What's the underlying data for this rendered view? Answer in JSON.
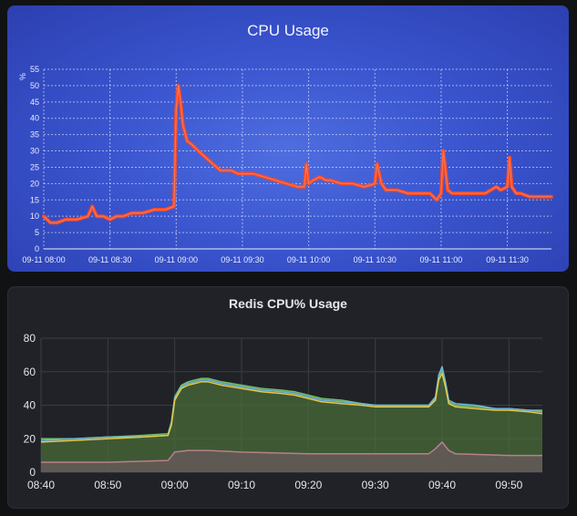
{
  "chart_data": [
    {
      "type": "line",
      "title": "CPU Usage",
      "ylabel": "%",
      "xlabel": "",
      "ylim": [
        0,
        55
      ],
      "y_ticks": [
        "0",
        "5",
        "10",
        "15",
        "20",
        "25",
        "30",
        "35",
        "40",
        "45",
        "50",
        "55"
      ],
      "x_ticks": [
        "09-11 08:00",
        "09-11 08:30",
        "09-11 09:00",
        "09-11 09:30",
        "09-11 10:00",
        "09-11 10:30",
        "09-11 11:00",
        "09-11 11:30"
      ],
      "x_tick_minutes": [
        0,
        30,
        60,
        90,
        120,
        150,
        180,
        210
      ],
      "xlim_minutes": [
        0,
        230
      ],
      "grid": true,
      "colors": {
        "line": "#ef4a2e",
        "grid": "#ffffff",
        "text": "#e8ecff"
      },
      "series": [
        {
          "x": [
            0,
            3,
            6,
            10,
            15,
            20,
            22,
            24,
            27,
            30,
            33,
            36,
            40,
            45,
            50,
            55,
            59,
            60,
            61,
            62,
            63,
            65,
            67,
            70,
            75,
            80,
            85,
            88,
            90,
            95,
            100,
            105,
            110,
            115,
            118,
            119,
            120,
            122,
            125,
            128,
            130,
            135,
            140,
            145,
            150,
            151,
            153,
            155,
            160,
            165,
            170,
            175,
            178,
            180,
            181,
            183,
            185,
            190,
            195,
            200,
            205,
            207,
            210,
            211,
            212,
            214,
            216,
            220,
            225,
            230
          ],
          "y": [
            10,
            8,
            8,
            9,
            9,
            10,
            13,
            10,
            10,
            9,
            10,
            10,
            11,
            11,
            12,
            12,
            13,
            43,
            50,
            45,
            38,
            33,
            32,
            30,
            27,
            24,
            24,
            23,
            23,
            23,
            22,
            21,
            20,
            19,
            19,
            26,
            20,
            21,
            22,
            21,
            21,
            20,
            20,
            19,
            20,
            26,
            20,
            18,
            18,
            17,
            17,
            17,
            15,
            17,
            30,
            18,
            17,
            17,
            17,
            17,
            19,
            18,
            19,
            28,
            19,
            17,
            17,
            16,
            16,
            16
          ]
        }
      ]
    },
    {
      "type": "area",
      "title": "Redis CPU% Usage",
      "xlabel": "",
      "ylabel": "",
      "ylim": [
        0,
        80
      ],
      "y_ticks": [
        "0",
        "20",
        "40",
        "60",
        "80"
      ],
      "x_ticks": [
        "08:40",
        "08:50",
        "09:00",
        "09:10",
        "09:20",
        "09:30",
        "09:40",
        "09:50"
      ],
      "x_tick_minutes": [
        0,
        10,
        20,
        30,
        40,
        50,
        60,
        70
      ],
      "xlim_minutes": [
        0,
        75
      ],
      "grid": true,
      "colors": {
        "grid": "#3a3d44",
        "text": "#e4e5e8"
      },
      "series": [
        {
          "color": "#73bf69",
          "fill": "#4a6b3a",
          "x": [
            0,
            5,
            10,
            15,
            19,
            19.5,
            20,
            21,
            22,
            23,
            24,
            25,
            27,
            30,
            33,
            36,
            38,
            40,
            42,
            45,
            48,
            50,
            53,
            56,
            58,
            59,
            59.5,
            60,
            60.5,
            61,
            62,
            65,
            68,
            70,
            73,
            75
          ],
          "y": [
            20,
            20,
            21,
            22,
            23,
            30,
            45,
            52,
            54,
            55,
            56,
            56,
            54,
            52,
            50,
            49,
            48,
            46,
            44,
            43,
            41,
            40,
            40,
            40,
            40,
            44,
            57,
            61,
            52,
            42,
            40,
            39,
            38,
            38,
            37,
            37
          ]
        },
        {
          "color": "#6fb7d8",
          "fill": "none",
          "x": [
            0,
            5,
            10,
            15,
            19,
            19.5,
            20,
            21,
            22,
            23,
            24,
            25,
            27,
            30,
            33,
            36,
            38,
            40,
            42,
            45,
            48,
            50,
            53,
            56,
            58,
            59,
            59.5,
            60,
            60.5,
            61,
            62,
            65,
            68,
            70,
            73,
            75
          ],
          "y": [
            19,
            20,
            21,
            21,
            22,
            29,
            44,
            51,
            53,
            54,
            55,
            55,
            53,
            51,
            49,
            48,
            47,
            45,
            43,
            42,
            41,
            40,
            40,
            40,
            40,
            45,
            58,
            63,
            54,
            43,
            41,
            40,
            38,
            38,
            37,
            36
          ]
        },
        {
          "color": "#e5c84a",
          "fill": "none",
          "x": [
            0,
            5,
            10,
            15,
            19,
            19.5,
            20,
            21,
            22,
            23,
            24,
            25,
            27,
            30,
            33,
            36,
            38,
            40,
            42,
            45,
            48,
            50,
            53,
            56,
            58,
            59,
            59.5,
            60,
            60.5,
            61,
            62,
            65,
            68,
            70,
            73,
            75
          ],
          "y": [
            18,
            19,
            20,
            21,
            22,
            28,
            43,
            50,
            52,
            53,
            54,
            54,
            52,
            50,
            48,
            47,
            46,
            44,
            42,
            41,
            40,
            39,
            39,
            39,
            39,
            43,
            55,
            59,
            51,
            41,
            39,
            38,
            37,
            37,
            36,
            35
          ]
        },
        {
          "color": "#b7808a",
          "fill": "#6a5a5e",
          "x": [
            0,
            10,
            19,
            20,
            22,
            25,
            30,
            40,
            50,
            58,
            59,
            60,
            61,
            62,
            70,
            75
          ],
          "y": [
            6,
            6,
            7,
            12,
            13,
            13,
            12,
            11,
            11,
            11,
            14,
            18,
            13,
            11,
            10,
            10
          ]
        }
      ]
    }
  ]
}
